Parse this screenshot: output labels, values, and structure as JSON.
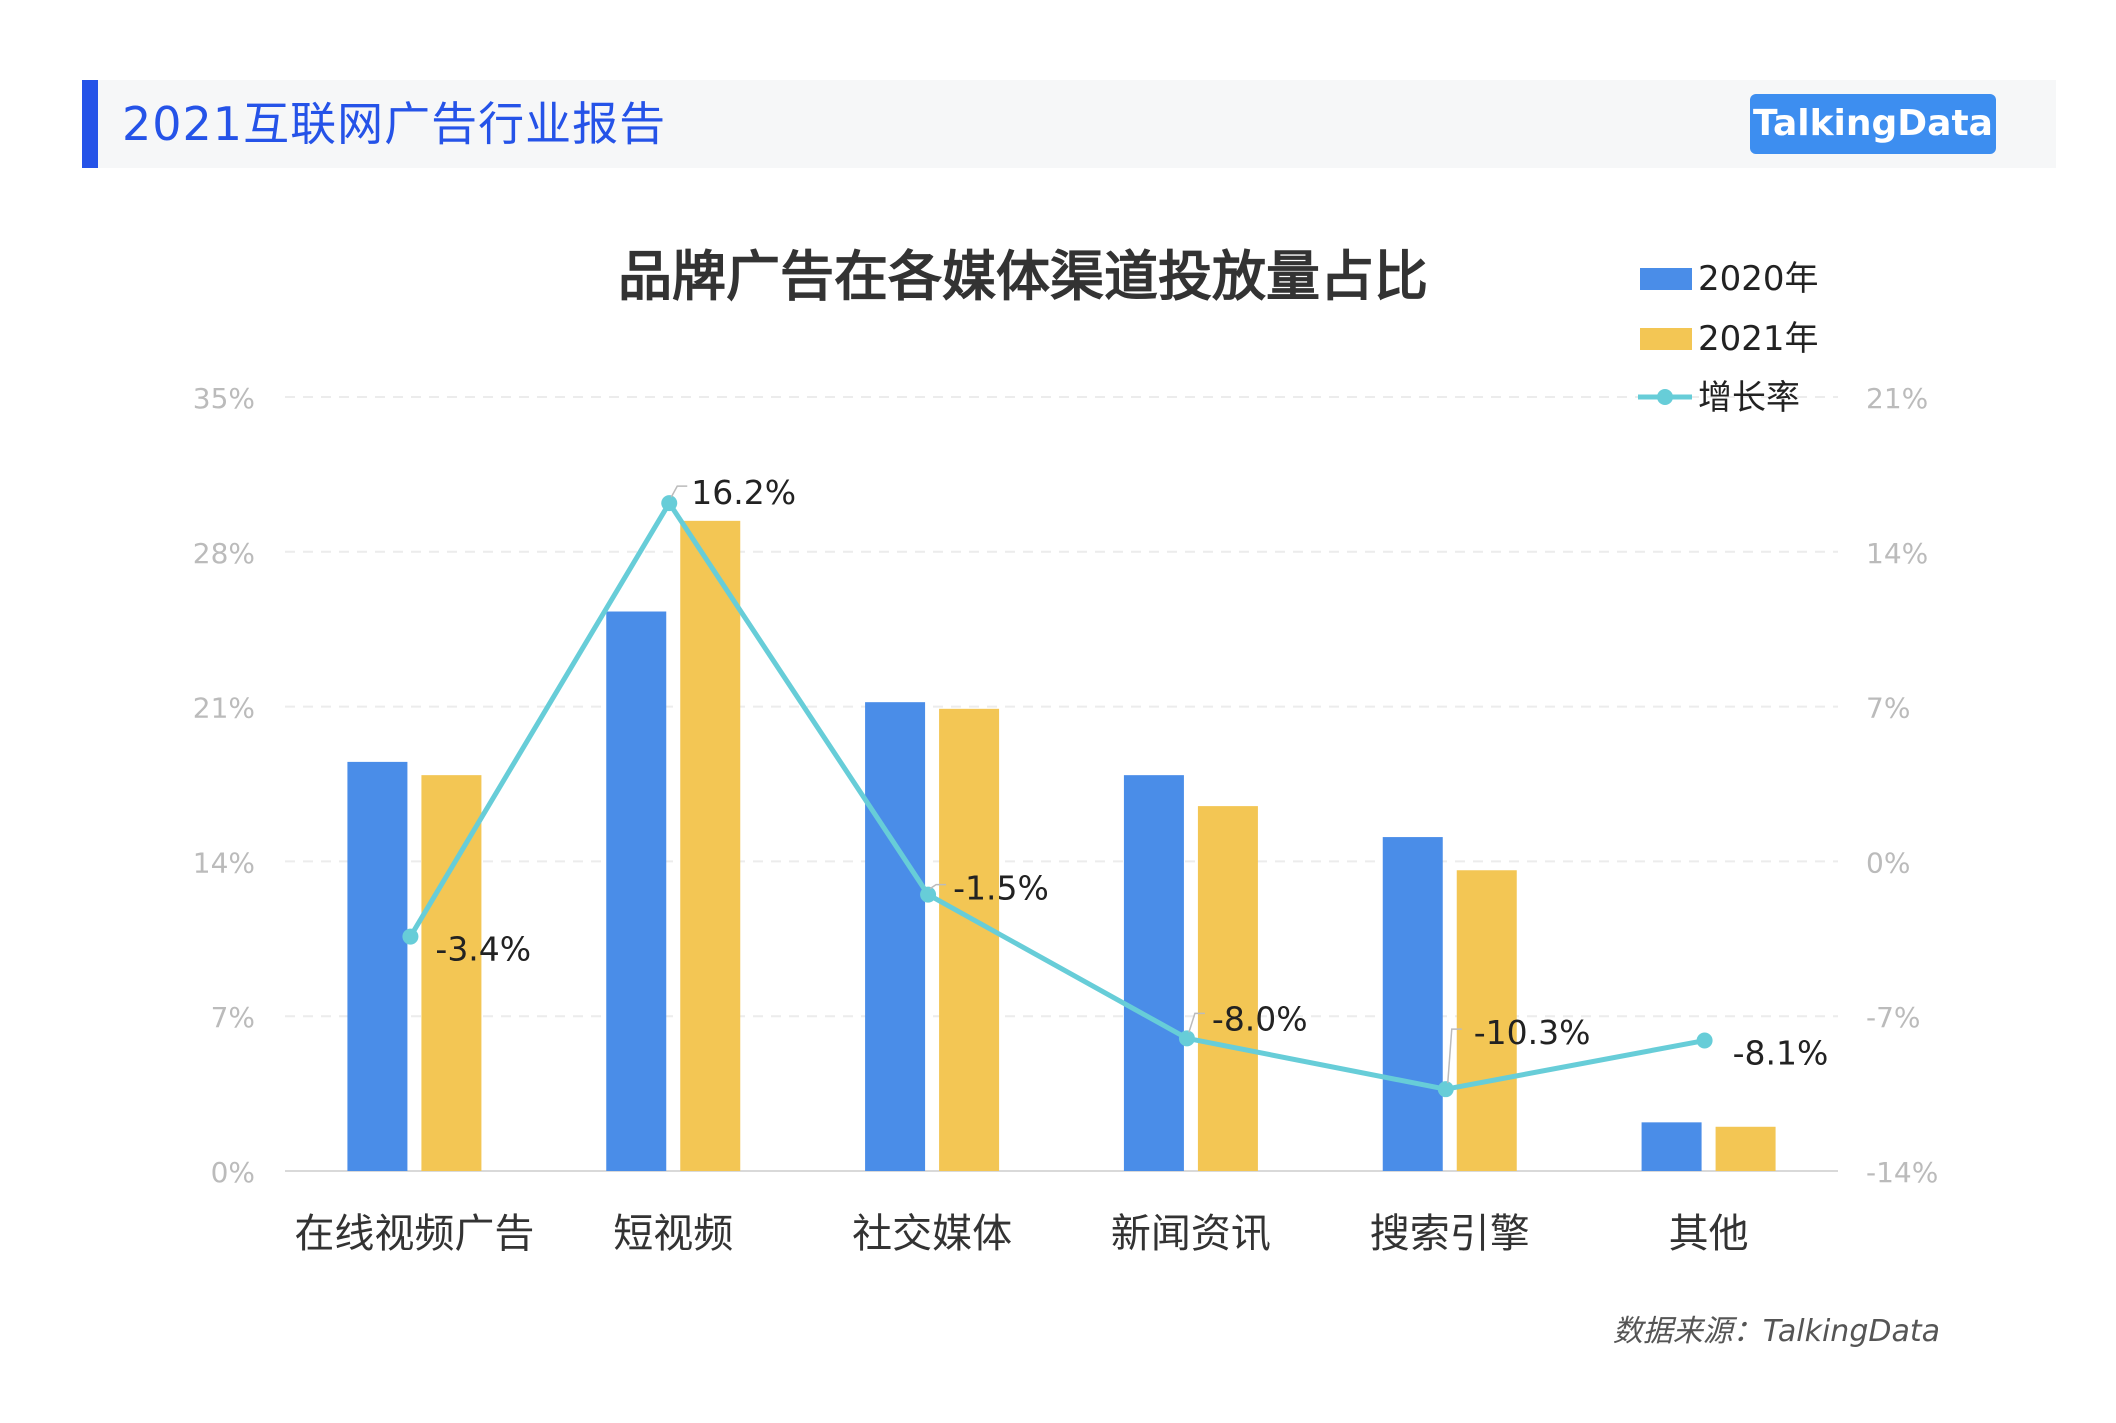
{
  "header": {
    "title": "2021互联网广告行业报告",
    "brand": "TalkingData"
  },
  "chart_data": {
    "type": "bar",
    "title": "品牌广告在各媒体渠道投放量占比",
    "categories": [
      "在线视频广告",
      "短视频",
      "社交媒体",
      "新闻资讯",
      "搜索引擎",
      "其他"
    ],
    "series": [
      {
        "name": "2020年",
        "kind": "bar",
        "axis": "left",
        "color": "#4a8de8",
        "values": [
          18.5,
          25.3,
          21.2,
          17.9,
          15.1,
          2.2
        ]
      },
      {
        "name": "2021年",
        "kind": "bar",
        "axis": "left",
        "color": "#f3c654",
        "values": [
          17.9,
          29.4,
          20.9,
          16.5,
          13.6,
          2.0
        ]
      },
      {
        "name": "增长率",
        "kind": "line",
        "axis": "right",
        "color": "#67cdd8",
        "values": [
          -3.4,
          16.2,
          -1.5,
          -8.0,
          -10.3,
          -8.1
        ],
        "labels": [
          "-3.4%",
          "16.2%",
          "-1.5%",
          "-8.0%",
          "-10.3%",
          "-8.1%"
        ]
      }
    ],
    "y_left": {
      "ticks": [
        "0%",
        "7%",
        "14%",
        "21%",
        "28%",
        "35%"
      ],
      "values": [
        0,
        7,
        14,
        21,
        28,
        35
      ],
      "ylim": [
        0,
        35
      ]
    },
    "y_right": {
      "ticks": [
        "-14%",
        "-7%",
        "0%",
        "7%",
        "14%",
        "21%"
      ],
      "values": [
        -14,
        -7,
        0,
        7,
        14,
        21
      ],
      "ylim": [
        -14,
        21
      ]
    },
    "legend_placement": "top-right",
    "grid": true
  },
  "footer": {
    "source": "数据来源：TalkingData"
  }
}
